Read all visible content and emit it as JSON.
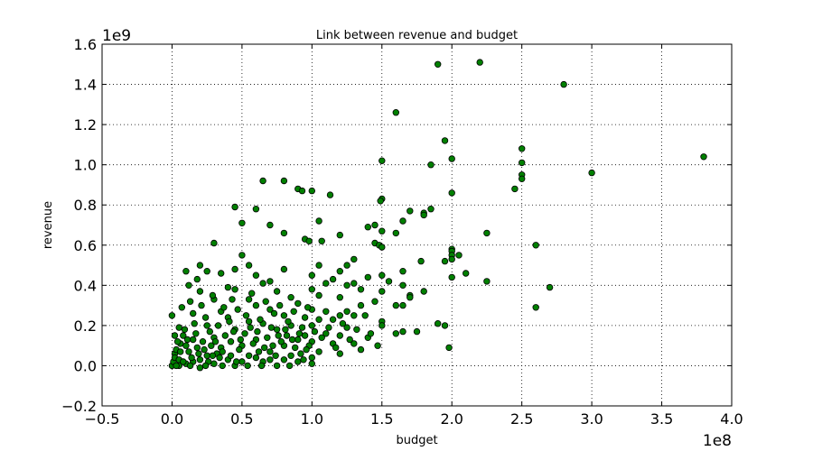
{
  "chart_data": {
    "type": "scatter",
    "title": "Link between revenue and budget",
    "xlabel": "budget",
    "ylabel": "revenue",
    "x_offset_label": "1e8",
    "y_offset_label": "1e9",
    "xlim": [
      -0.5,
      4.0
    ],
    "ylim": [
      -0.2,
      1.6
    ],
    "x_scale": 100000000,
    "y_scale": 1000000000,
    "xticks": [
      -0.5,
      0.0,
      0.5,
      1.0,
      1.5,
      2.0,
      2.5,
      3.0,
      3.5,
      4.0
    ],
    "xtick_labels": [
      "−0.5",
      "0.0",
      "0.5",
      "1.0",
      "1.5",
      "2.0",
      "2.5",
      "3.0",
      "3.5",
      "4.0"
    ],
    "yticks": [
      -0.2,
      0.0,
      0.2,
      0.4,
      0.6,
      0.8,
      1.0,
      1.2,
      1.4,
      1.6
    ],
    "ytick_labels": [
      "−0.2",
      "0.0",
      "0.2",
      "0.4",
      "0.6",
      "0.8",
      "1.0",
      "1.2",
      "1.4",
      "1.6"
    ],
    "grid": true,
    "marker_color": "#008000",
    "marker_edge_color": "#000000",
    "series": [
      {
        "points": [
          [
            2.2,
            1.51
          ],
          [
            1.9,
            1.5
          ],
          [
            2.8,
            1.4
          ],
          [
            1.6,
            1.26
          ],
          [
            1.95,
            1.12
          ],
          [
            2.5,
            1.08
          ],
          [
            3.8,
            1.04
          ],
          [
            2.0,
            1.03
          ],
          [
            1.5,
            1.02
          ],
          [
            2.5,
            1.01
          ],
          [
            1.85,
            1.0
          ],
          [
            2.5,
            0.95
          ],
          [
            3.0,
            0.96
          ],
          [
            2.5,
            0.93
          ],
          [
            0.65,
            0.92
          ],
          [
            0.8,
            0.92
          ],
          [
            0.9,
            0.88
          ],
          [
            1.0,
            0.87
          ],
          [
            0.93,
            0.87
          ],
          [
            1.13,
            0.85
          ],
          [
            2.45,
            0.88
          ],
          [
            2.0,
            0.86
          ],
          [
            1.5,
            0.83
          ],
          [
            1.49,
            0.82
          ],
          [
            0.45,
            0.79
          ],
          [
            0.6,
            0.78
          ],
          [
            1.85,
            0.78
          ],
          [
            1.8,
            0.76
          ],
          [
            1.7,
            0.77
          ],
          [
            1.8,
            0.75
          ],
          [
            1.05,
            0.72
          ],
          [
            1.65,
            0.72
          ],
          [
            0.5,
            0.71
          ],
          [
            0.7,
            0.7
          ],
          [
            1.45,
            0.7
          ],
          [
            1.4,
            0.69
          ],
          [
            1.5,
            0.67
          ],
          [
            1.6,
            0.66
          ],
          [
            2.25,
            0.66
          ],
          [
            0.8,
            0.66
          ],
          [
            1.2,
            0.65
          ],
          [
            0.95,
            0.63
          ],
          [
            1.07,
            0.62
          ],
          [
            0.98,
            0.62
          ],
          [
            0.3,
            0.61
          ],
          [
            1.45,
            0.61
          ],
          [
            1.48,
            0.6
          ],
          [
            1.5,
            0.59
          ],
          [
            2.6,
            0.6
          ],
          [
            2.0,
            0.58
          ],
          [
            2.0,
            0.57
          ],
          [
            2.0,
            0.55
          ],
          [
            2.05,
            0.55
          ],
          [
            2.0,
            0.53
          ],
          [
            0.5,
            0.55
          ],
          [
            1.3,
            0.53
          ],
          [
            1.78,
            0.52
          ],
          [
            1.95,
            0.52
          ],
          [
            0.55,
            0.5
          ],
          [
            1.05,
            0.5
          ],
          [
            1.25,
            0.5
          ],
          [
            0.2,
            0.5
          ],
          [
            0.25,
            0.47
          ],
          [
            0.45,
            0.48
          ],
          [
            0.8,
            0.48
          ],
          [
            2.1,
            0.46
          ],
          [
            1.2,
            0.47
          ],
          [
            1.65,
            0.47
          ],
          [
            0.1,
            0.47
          ],
          [
            0.35,
            0.46
          ],
          [
            1.5,
            0.45
          ],
          [
            2.0,
            0.44
          ],
          [
            0.6,
            0.45
          ],
          [
            1.0,
            0.45
          ],
          [
            1.4,
            0.44
          ],
          [
            1.15,
            0.43
          ],
          [
            2.25,
            0.42
          ],
          [
            0.18,
            0.43
          ],
          [
            1.55,
            0.42
          ],
          [
            0.7,
            0.42
          ],
          [
            0.65,
            0.41
          ],
          [
            1.1,
            0.41
          ],
          [
            1.3,
            0.41
          ],
          [
            1.25,
            0.4
          ],
          [
            0.12,
            0.4
          ],
          [
            0.4,
            0.39
          ],
          [
            1.65,
            0.4
          ],
          [
            2.7,
            0.39
          ],
          [
            1.0,
            0.38
          ],
          [
            1.35,
            0.38
          ],
          [
            1.8,
            0.37
          ],
          [
            0.45,
            0.38
          ],
          [
            0.75,
            0.37
          ],
          [
            1.5,
            0.37
          ],
          [
            0.2,
            0.37
          ],
          [
            1.7,
            0.35
          ],
          [
            1.7,
            0.34
          ],
          [
            1.2,
            0.34
          ],
          [
            0.85,
            0.34
          ],
          [
            1.05,
            0.35
          ],
          [
            0.55,
            0.33
          ],
          [
            0.3,
            0.33
          ],
          [
            1.45,
            0.32
          ],
          [
            0.9,
            0.31
          ],
          [
            0.6,
            0.3
          ],
          [
            1.35,
            0.3
          ],
          [
            1.65,
            0.3
          ],
          [
            1.6,
            0.3
          ],
          [
            2.6,
            0.29
          ],
          [
            0.7,
            0.28
          ],
          [
            1.0,
            0.28
          ],
          [
            1.25,
            0.27
          ],
          [
            1.1,
            0.27
          ],
          [
            0.15,
            0.26
          ],
          [
            0.35,
            0.27
          ],
          [
            1.2,
            0.25
          ],
          [
            1.3,
            0.25
          ],
          [
            1.38,
            0.25
          ],
          [
            0.0,
            0.25
          ],
          [
            0.4,
            0.24
          ],
          [
            0.8,
            0.25
          ],
          [
            0.95,
            0.24
          ],
          [
            1.05,
            0.23
          ],
          [
            1.15,
            0.23
          ],
          [
            1.5,
            0.22
          ],
          [
            1.9,
            0.21
          ],
          [
            1.95,
            0.2
          ],
          [
            1.5,
            0.2
          ],
          [
            0.55,
            0.22
          ],
          [
            0.65,
            0.21
          ],
          [
            0.25,
            0.2
          ],
          [
            0.85,
            0.2
          ],
          [
            1.0,
            0.2
          ],
          [
            1.25,
            0.19
          ],
          [
            0.05,
            0.19
          ],
          [
            0.45,
            0.18
          ],
          [
            0.75,
            0.18
          ],
          [
            1.65,
            0.17
          ],
          [
            1.6,
            0.16
          ],
          [
            1.75,
            0.17
          ],
          [
            1.1,
            0.16
          ],
          [
            0.95,
            0.15
          ],
          [
            1.2,
            0.15
          ],
          [
            1.4,
            0.14
          ],
          [
            0.3,
            0.14
          ],
          [
            0.6,
            0.13
          ],
          [
            0.15,
            0.13
          ],
          [
            0.9,
            0.13
          ],
          [
            1.0,
            0.12
          ],
          [
            1.15,
            0.11
          ],
          [
            1.3,
            0.11
          ],
          [
            0.5,
            0.1
          ],
          [
            0.8,
            0.1
          ],
          [
            0.1,
            0.1
          ],
          [
            0.35,
            0.09
          ],
          [
            1.98,
            0.09
          ],
          [
            1.35,
            0.08
          ],
          [
            0.7,
            0.07
          ],
          [
            1.05,
            0.07
          ],
          [
            1.2,
            0.06
          ],
          [
            0.02,
            0.06
          ],
          [
            0.25,
            0.05
          ],
          [
            0.55,
            0.05
          ],
          [
            0.85,
            0.05
          ],
          [
            1.0,
            0.04
          ],
          [
            0.4,
            0.03
          ],
          [
            0.15,
            0.02
          ],
          [
            0.65,
            0.02
          ],
          [
            0.9,
            0.02
          ],
          [
            1.0,
            0.01
          ],
          [
            0.3,
            0.01
          ],
          [
            0.05,
            0.0
          ],
          [
            0.45,
            0.0
          ],
          [
            0.75,
            0.0
          ],
          [
            0.2,
            -0.01
          ],
          [
            0.0,
            0.0
          ],
          [
            0.01,
            0.02
          ],
          [
            0.02,
            0.04
          ],
          [
            0.03,
            0.08
          ],
          [
            0.06,
            0.11
          ],
          [
            0.08,
            0.15
          ],
          [
            0.12,
            0.07
          ],
          [
            0.18,
            0.09
          ],
          [
            0.22,
            0.12
          ],
          [
            0.28,
            0.1
          ],
          [
            0.32,
            0.06
          ],
          [
            0.38,
            0.15
          ],
          [
            0.42,
            0.12
          ],
          [
            0.48,
            0.08
          ],
          [
            0.52,
            0.16
          ],
          [
            0.58,
            0.11
          ],
          [
            0.62,
            0.07
          ],
          [
            0.68,
            0.14
          ],
          [
            0.72,
            0.1
          ],
          [
            0.78,
            0.12
          ],
          [
            0.82,
            0.15
          ],
          [
            0.88,
            0.09
          ],
          [
            0.92,
            0.06
          ],
          [
            0.98,
            0.1
          ],
          [
            0.05,
            0.03
          ],
          [
            0.1,
            0.01
          ],
          [
            0.14,
            0.04
          ],
          [
            0.2,
            0.03
          ],
          [
            0.26,
            0.02
          ],
          [
            0.34,
            0.04
          ],
          [
            0.42,
            0.05
          ],
          [
            0.5,
            0.02
          ],
          [
            0.6,
            0.04
          ],
          [
            0.7,
            0.03
          ],
          [
            0.8,
            0.03
          ],
          [
            0.04,
            0.12
          ],
          [
            0.09,
            0.18
          ],
          [
            0.16,
            0.21
          ],
          [
            0.24,
            0.24
          ],
          [
            0.33,
            0.2
          ],
          [
            0.41,
            0.22
          ],
          [
            0.47,
            0.28
          ],
          [
            0.53,
            0.25
          ],
          [
            0.63,
            0.23
          ],
          [
            0.73,
            0.26
          ],
          [
            0.83,
            0.22
          ],
          [
            0.93,
            0.19
          ],
          [
            0.07,
            0.29
          ],
          [
            0.13,
            0.32
          ],
          [
            0.21,
            0.3
          ],
          [
            0.29,
            0.35
          ],
          [
            0.37,
            0.29
          ],
          [
            0.43,
            0.33
          ],
          [
            0.57,
            0.36
          ],
          [
            0.67,
            0.32
          ],
          [
            0.77,
            0.3
          ],
          [
            0.87,
            0.27
          ],
          [
            0.97,
            0.29
          ],
          [
            0.02,
            0.15
          ],
          [
            0.06,
            0.07
          ],
          [
            0.11,
            0.13
          ],
          [
            0.17,
            0.16
          ],
          [
            0.23,
            0.08
          ],
          [
            0.27,
            0.17
          ],
          [
            0.31,
            0.12
          ],
          [
            0.36,
            0.07
          ],
          [
            0.44,
            0.17
          ],
          [
            0.49,
            0.13
          ],
          [
            0.56,
            0.19
          ],
          [
            0.61,
            0.17
          ],
          [
            0.66,
            0.09
          ],
          [
            0.71,
            0.19
          ],
          [
            0.76,
            0.15
          ],
          [
            0.81,
            0.18
          ],
          [
            0.86,
            0.13
          ],
          [
            0.91,
            0.16
          ],
          [
            0.96,
            0.08
          ],
          [
            1.02,
            0.17
          ],
          [
            1.07,
            0.14
          ],
          [
            1.12,
            0.19
          ],
          [
            1.17,
            0.09
          ],
          [
            1.22,
            0.21
          ],
          [
            1.27,
            0.13
          ],
          [
            1.32,
            0.18
          ],
          [
            1.42,
            0.16
          ],
          [
            1.47,
            0.1
          ],
          [
            0.03,
            0.0
          ],
          [
            0.08,
            0.02
          ],
          [
            0.13,
            0.0
          ],
          [
            0.19,
            0.06
          ],
          [
            0.24,
            0.0
          ],
          [
            0.29,
            0.05
          ],
          [
            0.36,
            0.0
          ],
          [
            0.46,
            0.02
          ],
          [
            0.54,
            0.0
          ],
          [
            0.64,
            0.0
          ],
          [
            0.74,
            0.05
          ],
          [
            0.84,
            0.0
          ],
          [
            0.94,
            0.03
          ]
        ]
      }
    ]
  }
}
